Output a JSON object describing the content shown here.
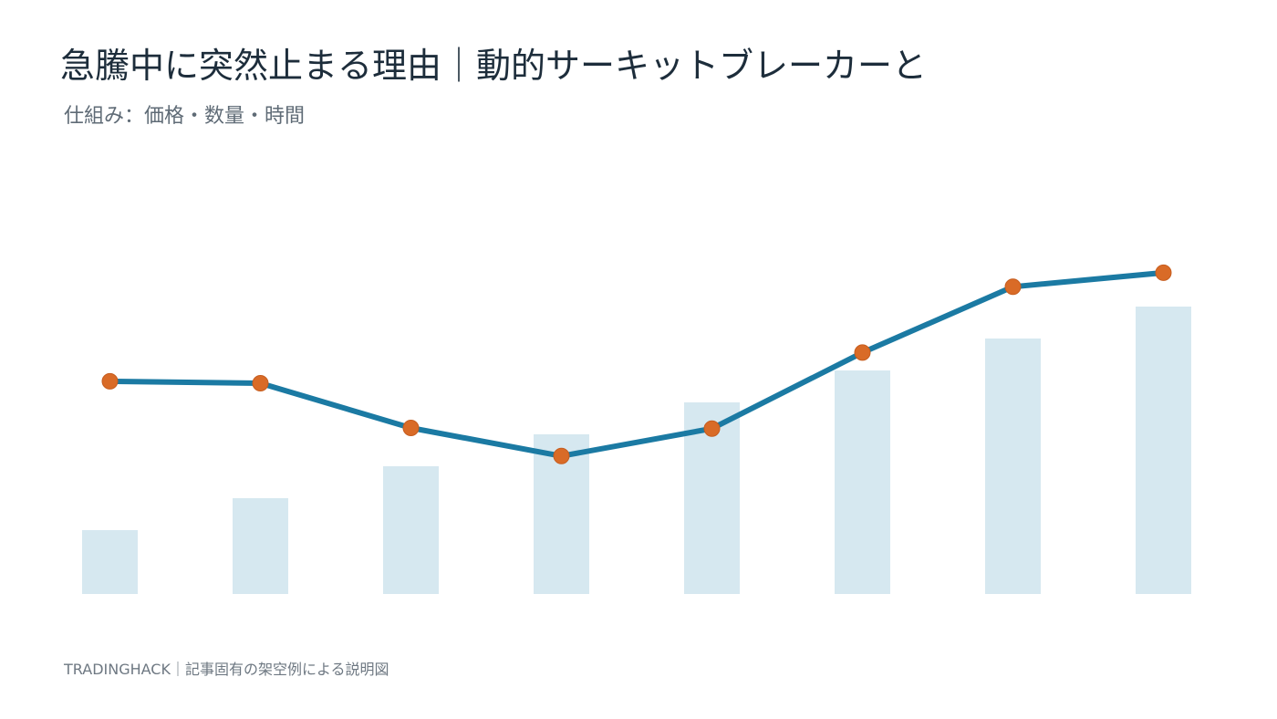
{
  "title": "急騰中に突然止まる理由｜動的サーキットブレーカーと",
  "subtitle": "仕組み：価格・数量・時間",
  "footer": "TRADINGHACK｜記事固有の架空例による説明図",
  "colors": {
    "bar": "#d6e8f0",
    "line": "#1b7aa3",
    "marker": "#d96b27",
    "marker_stroke": "#c65d1f",
    "title": "#1d2d3b",
    "subtitle": "#5f6b76",
    "footer": "#6e7882"
  },
  "chart_data": {
    "type": "bar+line",
    "categories": [
      "",
      "",
      "",
      "",
      "",
      "",
      "",
      ""
    ],
    "series": [
      {
        "type": "bar",
        "values": [
          2,
          3,
          4,
          5,
          6,
          7,
          8,
          9
        ]
      },
      {
        "type": "line",
        "values": [
          6.66,
          6.6,
          5.2,
          4.32,
          5.18,
          7.56,
          9.62,
          10.06
        ]
      }
    ],
    "ylim": [
      -12.6,
      12
    ],
    "grid": false,
    "legend": "none",
    "xlabel": "",
    "ylabel": ""
  }
}
